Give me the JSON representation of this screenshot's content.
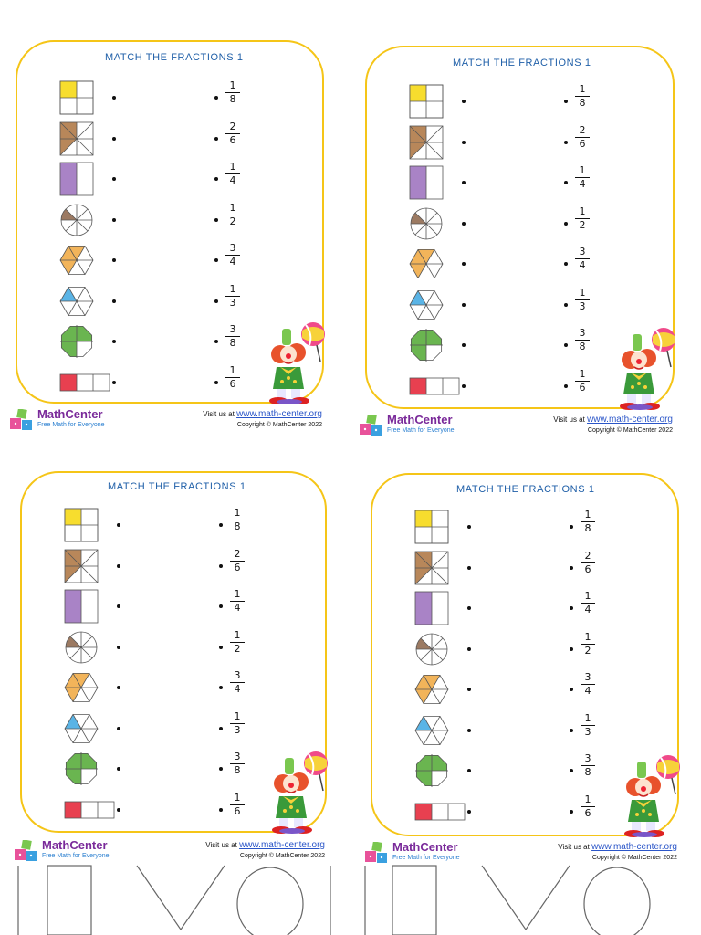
{
  "worksheet": {
    "title": "MATCH THE FRACTIONS 1",
    "shape_rows": [
      {
        "icon": "square-quarter-yellow-icon",
        "fill_color": "#f7dd2e",
        "shaded_fraction": "1/4"
      },
      {
        "icon": "square-eighths-brown-icon",
        "fill_color": "#b8875a",
        "shaded_fraction": "3/8"
      },
      {
        "icon": "square-half-purple-icon",
        "fill_color": "#a983c6",
        "shaded_fraction": "1/2"
      },
      {
        "icon": "circle-eighth-brown-icon",
        "fill_color": "#9c7a62",
        "shaded_fraction": "1/8"
      },
      {
        "icon": "hexagon-half-orange-icon",
        "fill_color": "#f2b45a",
        "shaded_fraction": "3/6"
      },
      {
        "icon": "hexagon-sixth-blue-icon",
        "fill_color": "#5ab4e6",
        "shaded_fraction": "1/6"
      },
      {
        "icon": "octagon-three-quarters-green-icon",
        "fill_color": "#6ab550",
        "shaded_fraction": "3/4"
      },
      {
        "icon": "bar-third-red-icon",
        "fill_color": "#e84050",
        "shaded_fraction": "1/3"
      }
    ],
    "fractions": [
      {
        "num": "1",
        "den": "8"
      },
      {
        "num": "2",
        "den": "6"
      },
      {
        "num": "1",
        "den": "4"
      },
      {
        "num": "1",
        "den": "2"
      },
      {
        "num": "3",
        "den": "4"
      },
      {
        "num": "1",
        "den": "3"
      },
      {
        "num": "3",
        "den": "8"
      },
      {
        "num": "1",
        "den": "6"
      }
    ]
  },
  "footer": {
    "brand": "MathCenter",
    "tagline": "Free Math for Everyone",
    "visit_label": "Visit us at ",
    "url": "www.math-center.org",
    "copyright": "Copyright © MathCenter 2022"
  },
  "colors": {
    "frame": "#f5c518",
    "title": "#1f5fa8",
    "brand": "#7a2a9a",
    "tagline": "#2a7fd0"
  }
}
